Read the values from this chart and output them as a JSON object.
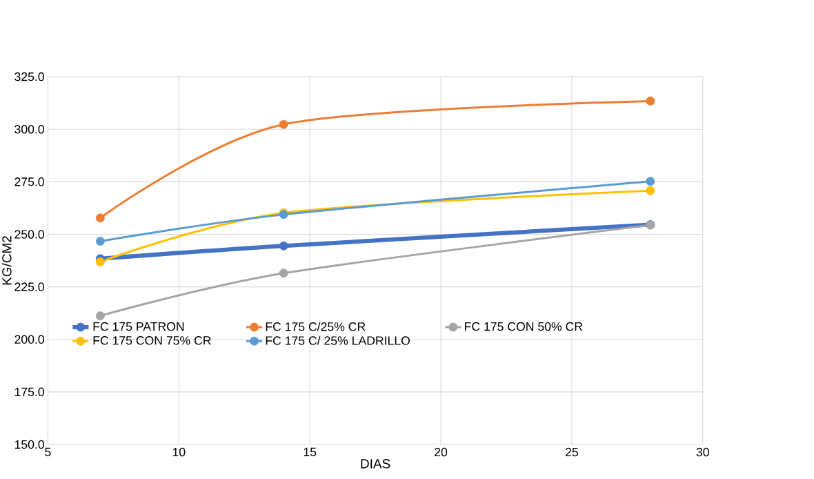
{
  "chart_data": {
    "type": "line",
    "xlabel": "DIAS",
    "ylabel": "KG/CM2",
    "x": [
      7,
      14,
      28
    ],
    "series": [
      {
        "name": "FC 175 PATRON",
        "color": "#4472c4",
        "values": [
          238.4,
          244.5,
          254.6
        ]
      },
      {
        "name": "FC 175 C/25% CR",
        "color": "#ed7d31",
        "values": [
          257.8,
          302.3,
          313.4
        ]
      },
      {
        "name": "FC 175 CON 50% CR",
        "color": "#a5a5a5",
        "values": [
          211.2,
          231.5,
          254.4
        ]
      },
      {
        "name": "FC 175 CON 75% CR",
        "color": "#ffc000",
        "values": [
          236.9,
          260.2,
          270.8
        ]
      },
      {
        "name": "FC 175 C/ 25% LADRILLO",
        "color": "#5b9bd5",
        "values": [
          246.7,
          259.4,
          275.2
        ]
      }
    ],
    "xlim": [
      5,
      30
    ],
    "xticks": [
      5,
      10,
      15,
      20,
      25,
      30
    ],
    "ylim": [
      150,
      325
    ],
    "yticks": [
      {
        "value": 150,
        "label": "150.0"
      },
      {
        "value": 175,
        "label": "175.0"
      },
      {
        "value": 200,
        "label": "200.0"
      },
      {
        "value": 225,
        "label": "225.0"
      },
      {
        "value": 250,
        "label": "250.0"
      },
      {
        "value": 275,
        "label": "275.0"
      },
      {
        "value": 300,
        "label": "300.0"
      },
      {
        "value": 325,
        "label": "325.0"
      }
    ],
    "grid": true,
    "legend": "left",
    "marker": "circle",
    "line_style": "solid"
  }
}
